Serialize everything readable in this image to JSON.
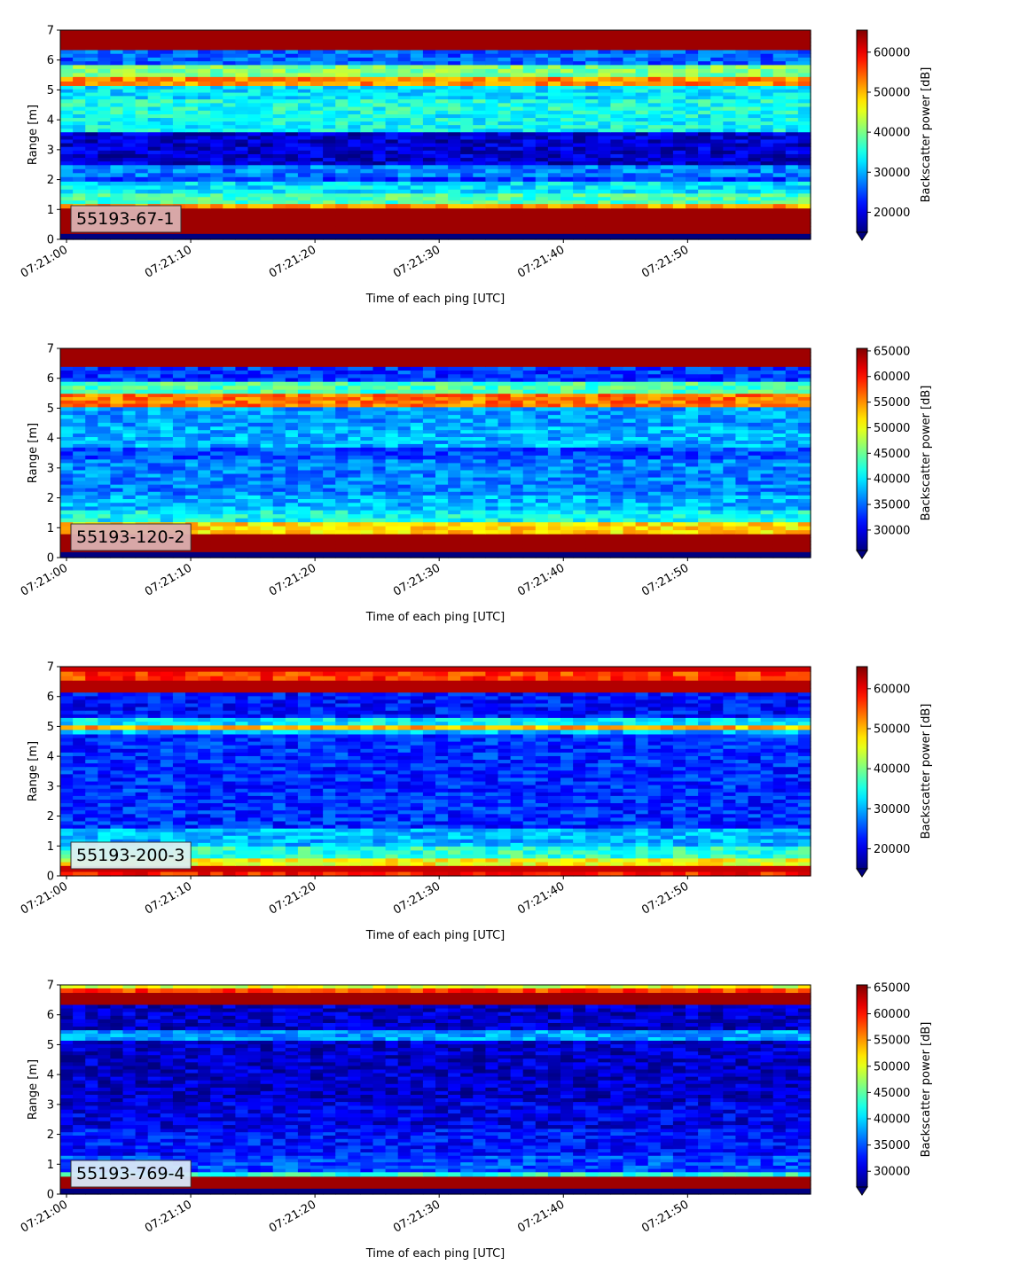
{
  "chart_data": [
    {
      "type": "heatmap",
      "title": "",
      "xlabel": "Time of each ping [UTC]",
      "ylabel": "Range [m]",
      "xticks": [
        "07:21:00",
        "07:21:10",
        "07:21:20",
        "07:21:30",
        "07:21:40",
        "07:21:50"
      ],
      "xlim_seconds": [
        0,
        60
      ],
      "ylim": [
        0,
        7
      ],
      "yticks": [
        0,
        1,
        2,
        3,
        4,
        5,
        6,
        7
      ],
      "colorbar": {
        "label": "Backscatter power [dB]",
        "range": [
          15000,
          65500
        ],
        "ticks": [
          20000,
          30000,
          40000,
          50000,
          60000
        ],
        "extend": "min",
        "colormap": "jet"
      },
      "annotation": {
        "text": "55193-67-1",
        "bg": "#dcb0b0"
      },
      "bands": [
        {
          "y0": 0.0,
          "y1": 0.2,
          "level": 0.0
        },
        {
          "y0": 0.2,
          "y1": 1.05,
          "level": 0.97
        },
        {
          "y0": 1.05,
          "y1": 1.2,
          "level": 0.72
        },
        {
          "y0": 1.2,
          "y1": 1.55,
          "level": 0.45
        },
        {
          "y0": 1.55,
          "y1": 1.95,
          "level": 0.35
        },
        {
          "y0": 1.95,
          "y1": 2.1,
          "level": 0.18
        },
        {
          "y0": 2.1,
          "y1": 2.5,
          "level": 0.25
        },
        {
          "y0": 2.5,
          "y1": 3.6,
          "level": 0.08
        },
        {
          "y0": 3.6,
          "y1": 4.2,
          "level": 0.38
        },
        {
          "y0": 4.2,
          "y1": 4.7,
          "level": 0.4
        },
        {
          "y0": 4.7,
          "y1": 5.15,
          "level": 0.35
        },
        {
          "y0": 5.15,
          "y1": 5.45,
          "level": 0.74
        },
        {
          "y0": 5.45,
          "y1": 5.85,
          "level": 0.5
        },
        {
          "y0": 5.85,
          "y1": 6.35,
          "level": 0.22
        },
        {
          "y0": 6.35,
          "y1": 7.0,
          "level": 0.97
        }
      ]
    },
    {
      "type": "heatmap",
      "title": "",
      "xlabel": "Time of each ping [UTC]",
      "ylabel": "Range [m]",
      "xticks": [
        "07:21:00",
        "07:21:10",
        "07:21:20",
        "07:21:30",
        "07:21:40",
        "07:21:50"
      ],
      "xlim_seconds": [
        0,
        60
      ],
      "ylim": [
        0,
        7
      ],
      "yticks": [
        0,
        1,
        2,
        3,
        4,
        5,
        6,
        7
      ],
      "colorbar": {
        "label": "Backscatter power [dB]",
        "range": [
          26000,
          65500
        ],
        "ticks": [
          30000,
          35000,
          40000,
          45000,
          50000,
          55000,
          60000,
          65000
        ],
        "extend": "min",
        "colormap": "jet"
      },
      "annotation": {
        "text": "55193-120-2",
        "bg": "#dcb0b0"
      },
      "bands": [
        {
          "y0": 0.0,
          "y1": 0.2,
          "level": 0.0
        },
        {
          "y0": 0.2,
          "y1": 0.8,
          "level": 0.97
        },
        {
          "y0": 0.8,
          "y1": 1.2,
          "level": 0.66
        },
        {
          "y0": 1.2,
          "y1": 1.6,
          "level": 0.38
        },
        {
          "y0": 1.6,
          "y1": 2.1,
          "level": 0.3
        },
        {
          "y0": 2.1,
          "y1": 3.3,
          "level": 0.25
        },
        {
          "y0": 3.3,
          "y1": 3.7,
          "level": 0.2
        },
        {
          "y0": 3.7,
          "y1": 4.4,
          "level": 0.3
        },
        {
          "y0": 4.4,
          "y1": 5.05,
          "level": 0.28
        },
        {
          "y0": 5.05,
          "y1": 5.5,
          "level": 0.76
        },
        {
          "y0": 5.5,
          "y1": 5.9,
          "level": 0.45
        },
        {
          "y0": 5.9,
          "y1": 6.4,
          "level": 0.18
        },
        {
          "y0": 6.4,
          "y1": 7.0,
          "level": 0.97
        }
      ]
    },
    {
      "type": "heatmap",
      "title": "",
      "xlabel": "Time of each ping [UTC]",
      "ylabel": "Range [m]",
      "xticks": [
        "07:21:00",
        "07:21:10",
        "07:21:20",
        "07:21:30",
        "07:21:40",
        "07:21:50"
      ],
      "xlim_seconds": [
        0,
        60
      ],
      "ylim": [
        0,
        7
      ],
      "yticks": [
        0,
        1,
        2,
        3,
        4,
        5,
        6,
        7
      ],
      "colorbar": {
        "label": "Backscatter power [dB]",
        "range": [
          15000,
          65500
        ],
        "ticks": [
          20000,
          30000,
          40000,
          50000,
          60000
        ],
        "extend": "min",
        "colormap": "jet"
      },
      "annotation": {
        "text": "55193-200-3",
        "bg": "#ddf0f0"
      },
      "bands": [
        {
          "y0": 0.0,
          "y1": 0.15,
          "level": 0.85
        },
        {
          "y0": 0.15,
          "y1": 0.35,
          "level": 0.93
        },
        {
          "y0": 0.35,
          "y1": 0.6,
          "level": 0.62
        },
        {
          "y0": 0.6,
          "y1": 1.0,
          "level": 0.42
        },
        {
          "y0": 1.0,
          "y1": 1.6,
          "level": 0.3
        },
        {
          "y0": 1.6,
          "y1": 4.75,
          "level": 0.17
        },
        {
          "y0": 4.75,
          "y1": 4.9,
          "level": 0.3
        },
        {
          "y0": 4.9,
          "y1": 5.05,
          "level": 0.7
        },
        {
          "y0": 5.05,
          "y1": 5.3,
          "level": 0.35
        },
        {
          "y0": 5.3,
          "y1": 6.15,
          "level": 0.14
        },
        {
          "y0": 6.15,
          "y1": 6.55,
          "level": 0.95
        },
        {
          "y0": 6.55,
          "y1": 6.85,
          "level": 0.82
        },
        {
          "y0": 6.85,
          "y1": 7.0,
          "level": 0.92
        }
      ]
    },
    {
      "type": "heatmap",
      "title": "",
      "xlabel": "Time of each ping [UTC]",
      "ylabel": "Range [m]",
      "xticks": [
        "07:21:00",
        "07:21:10",
        "07:21:20",
        "07:21:30",
        "07:21:40",
        "07:21:50"
      ],
      "xlim_seconds": [
        0,
        60
      ],
      "ylim": [
        0,
        7
      ],
      "yticks": [
        0,
        1,
        2,
        3,
        4,
        5,
        6,
        7
      ],
      "colorbar": {
        "label": "Backscatter power [dB]",
        "range": [
          27000,
          65500
        ],
        "ticks": [
          30000,
          35000,
          40000,
          45000,
          50000,
          55000,
          60000,
          65000
        ],
        "extend": "min",
        "colormap": "jet"
      },
      "annotation": {
        "text": "55193-769-4",
        "bg": "#d8e8f8"
      },
      "bands": [
        {
          "y0": 0.0,
          "y1": 0.2,
          "level": 0.0
        },
        {
          "y0": 0.2,
          "y1": 0.6,
          "level": 0.97
        },
        {
          "y0": 0.6,
          "y1": 0.75,
          "level": 0.4
        },
        {
          "y0": 0.75,
          "y1": 1.3,
          "level": 0.2
        },
        {
          "y0": 1.3,
          "y1": 2.2,
          "level": 0.14
        },
        {
          "y0": 2.2,
          "y1": 3.1,
          "level": 0.1
        },
        {
          "y0": 3.1,
          "y1": 5.15,
          "level": 0.07
        },
        {
          "y0": 5.15,
          "y1": 5.5,
          "level": 0.28
        },
        {
          "y0": 5.5,
          "y1": 6.35,
          "level": 0.07
        },
        {
          "y0": 6.35,
          "y1": 6.75,
          "level": 0.97
        },
        {
          "y0": 6.75,
          "y1": 6.9,
          "level": 0.82
        },
        {
          "y0": 6.9,
          "y1": 7.0,
          "level": 0.6
        }
      ]
    }
  ]
}
